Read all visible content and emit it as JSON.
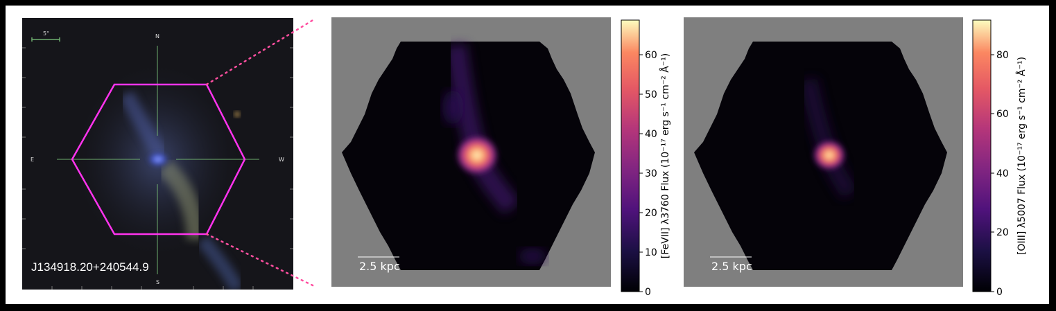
{
  "left_panel": {
    "angular_scale": "5\"",
    "compass": {
      "north": "N",
      "south": "S",
      "east": "E",
      "west": "W"
    },
    "object_name": "J134918.20+240544.9"
  },
  "map1": {
    "scale_bar": "2.5 kpc",
    "colorbar": {
      "label": "[FeVII] λ3760 Flux (10⁻¹⁷ erg s⁻¹ cm⁻² Å⁻¹)",
      "ticks": [
        "0",
        "10",
        "20",
        "30",
        "40",
        "50",
        "60"
      ]
    }
  },
  "map2": {
    "scale_bar": "2.5 kpc",
    "colorbar": {
      "label": "[OIII] λ5007 Flux (10⁻¹⁷ erg s⁻¹ cm⁻² Å⁻¹)",
      "ticks": [
        "0",
        "20",
        "40",
        "60",
        "80"
      ]
    }
  },
  "colors": {
    "hexagon": "#ff33ee",
    "crosshair": "#6fae6f",
    "masked": "#7f7f7f",
    "connector": "#ff4fa0"
  }
}
